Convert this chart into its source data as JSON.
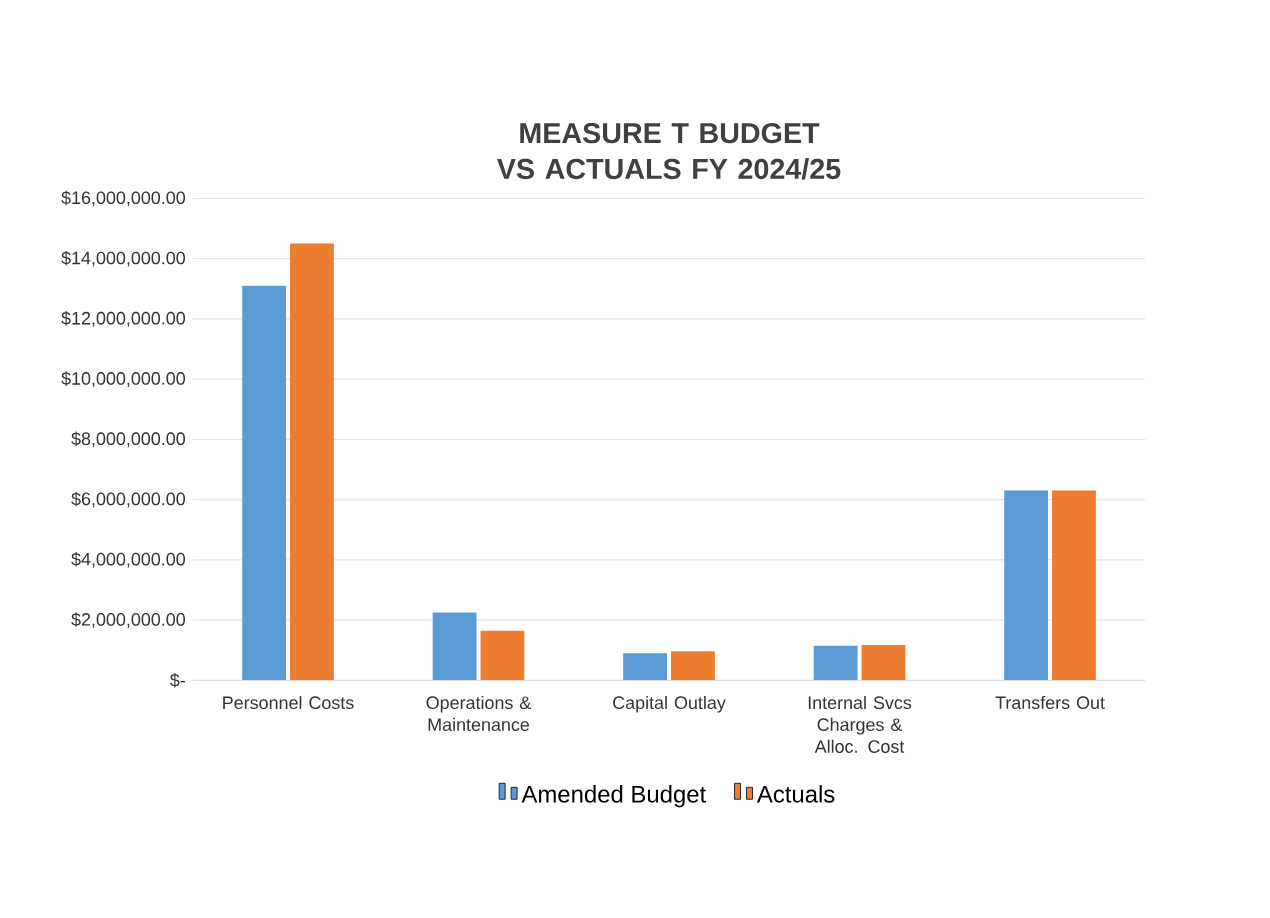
{
  "chart_data": {
    "type": "bar",
    "title": "MEASURE T BUDGET VS ACTUALS FY 2024/25",
    "categories": [
      "Personnel Costs",
      "Operations & Maintenance",
      "Capital Outlay",
      "Internal Svcs Charges & Alloc. Cost",
      "Transfers Out"
    ],
    "series": [
      {
        "name": "Amended Budget",
        "color": "#5b9bd5",
        "values": [
          13100000,
          2250000,
          900000,
          1150000,
          6300000
        ]
      },
      {
        "name": "Actuals",
        "color": "#ed7d31",
        "values": [
          14500000,
          1650000,
          970000,
          1170000,
          6300000
        ]
      }
    ],
    "ylim": [
      0,
      16000000
    ],
    "yticks": [
      {
        "value": 0,
        "label": "$-"
      },
      {
        "value": 2000000,
        "label": "$2,000,000.00"
      },
      {
        "value": 4000000,
        "label": "$4,000,000.00"
      },
      {
        "value": 6000000,
        "label": "$6,000,000.00"
      },
      {
        "value": 8000000,
        "label": "$8,000,000.00"
      },
      {
        "value": 10000000,
        "label": "$10,000,000.00"
      },
      {
        "value": 12000000,
        "label": "$12,000,000.00"
      },
      {
        "value": 14000000,
        "label": "$14,000,000.00"
      },
      {
        "value": 16000000,
        "label": "$16,000,000.00"
      }
    ],
    "grid": "y",
    "legend": "bottom"
  }
}
